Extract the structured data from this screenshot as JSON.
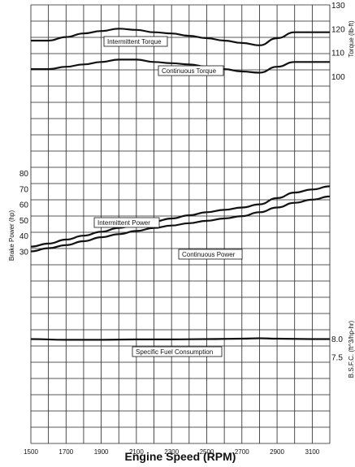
{
  "chart_data": {
    "type": "line",
    "xlabel": "Engine Speed (RPM)",
    "x_ticks": [
      "1500",
      "1700",
      "1900",
      "2100",
      "2300",
      "2500",
      "2700",
      "2900",
      "3100"
    ],
    "xlim": [
      1500,
      3200
    ],
    "grid": true,
    "panels": {
      "torque": {
        "ylabel": "Torque (lb-ft)",
        "y_ticks": [
          "130",
          "120",
          "110",
          "100"
        ],
        "series": [
          {
            "name": "Intermittent Torque",
            "x": [
              1500,
              1600,
              1700,
              1800,
              1900,
              2000,
              2100,
              2200,
              2300,
              2400,
              2500,
              2600,
              2700,
              2800,
              2900,
              3000,
              3100,
              3200
            ],
            "values": [
              115,
              115,
              116.5,
              118,
              119,
              120,
              119.5,
              118.5,
              118,
              117,
              116,
              115,
              114,
              113,
              116,
              118.5,
              118.5,
              118.5
            ]
          },
          {
            "name": "Continuous Torque",
            "x": [
              1500,
              1600,
              1700,
              1800,
              1900,
              2000,
              2100,
              2200,
              2300,
              2400,
              2500,
              2600,
              2700,
              2800,
              2900,
              3000,
              3100,
              3200
            ],
            "values": [
              103,
              103,
              104,
              105,
              106,
              107,
              107,
              106,
              105.5,
              105,
              104,
              103,
              102,
              101.5,
              104,
              106,
              106,
              106
            ]
          }
        ]
      },
      "power": {
        "ylabel": "Brake Power (hp)",
        "y_ticks": [
          "80",
          "70",
          "60",
          "50",
          "40",
          "30"
        ],
        "series": [
          {
            "name": "Intermittent Power",
            "x": [
              1500,
              1600,
              1700,
              1800,
              1900,
              2000,
              2100,
              2200,
              2300,
              2400,
              2500,
              2600,
              2700,
              2800,
              2900,
              3000,
              3100,
              3200
            ],
            "values": [
              33,
              35,
              37.5,
              40,
              42.5,
              45,
              47,
              49,
              51,
              53,
              55,
              56.5,
              58,
              60,
              64,
              67.5,
              69.5,
              71.5
            ]
          },
          {
            "name": "Continuous Power",
            "x": [
              1500,
              1600,
              1700,
              1800,
              1900,
              2000,
              2100,
              2200,
              2300,
              2400,
              2500,
              2600,
              2700,
              2800,
              2900,
              3000,
              3100,
              3200
            ],
            "values": [
              30,
              32,
              34,
              36.5,
              39,
              41,
              43,
              45,
              46.5,
              48,
              49.5,
              51,
              52.5,
              55,
              58,
              61,
              63,
              65
            ]
          }
        ]
      },
      "bsfc": {
        "ylabel": "B.S.F.C. (ft^3/hp-hr)",
        "y_ticks": [
          "8.0",
          "7.5"
        ],
        "series": [
          {
            "name": "Specific Fuel Consumption",
            "x": [
              1500,
              1700,
              1900,
              2100,
              2300,
              2500,
              2700,
              2800,
              2900,
              3100,
              3200
            ],
            "values": [
              7.99,
              7.97,
              7.97,
              7.98,
              7.98,
              7.99,
              8.0,
              8.01,
              8.0,
              7.99,
              7.99
            ]
          }
        ]
      }
    }
  }
}
